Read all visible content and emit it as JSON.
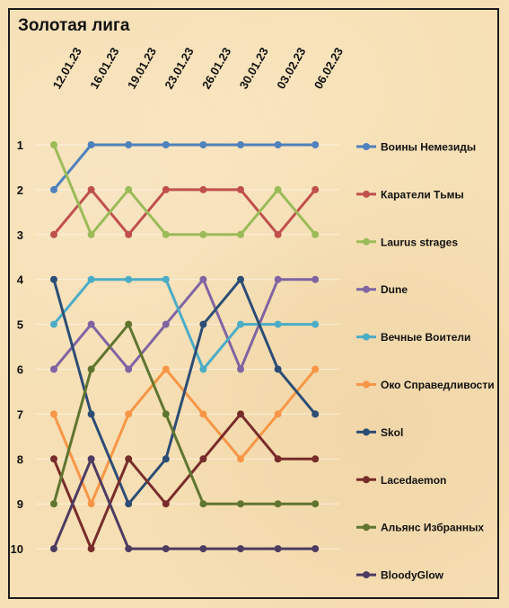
{
  "chart_data": {
    "type": "line",
    "title": "Золотая лига",
    "categories": [
      "12.01.23",
      "16.01.23",
      "19.01.23",
      "23.01.23",
      "26.01.23",
      "30.01.23",
      "03.02.23",
      "06.02.23"
    ],
    "y_ticks": [
      "1",
      "2",
      "3",
      "4",
      "5",
      "6",
      "7",
      "8",
      "9",
      "10"
    ],
    "ylim": [
      1,
      10
    ],
    "y_reversed": true,
    "grid": true,
    "legend_position": "right",
    "series": [
      {
        "name": "Воины Немезиды",
        "color": "#4f81bd",
        "values": [
          2,
          1,
          1,
          1,
          1,
          1,
          1,
          1
        ]
      },
      {
        "name": "Каратели Тьмы",
        "color": "#c0504d",
        "values": [
          3,
          2,
          3,
          2,
          2,
          2,
          3,
          2
        ]
      },
      {
        "name": "Laurus strages",
        "color": "#9bbb59",
        "values": [
          1,
          3,
          2,
          3,
          3,
          3,
          2,
          3
        ]
      },
      {
        "name": "Dune",
        "color": "#8064a2",
        "values": [
          6,
          5,
          6,
          5,
          4,
          6,
          4,
          4
        ]
      },
      {
        "name": "Вечные Воители",
        "color": "#4bacc6",
        "values": [
          5,
          4,
          4,
          4,
          6,
          5,
          5,
          5
        ]
      },
      {
        "name": "Око Справедливости",
        "color": "#f79646",
        "values": [
          7,
          9,
          7,
          6,
          7,
          8,
          7,
          6
        ]
      },
      {
        "name": "Skol",
        "color": "#2c4d75",
        "values": [
          4,
          7,
          9,
          8,
          5,
          4,
          6,
          7
        ]
      },
      {
        "name": "Lacedaemon",
        "color": "#772c2a",
        "values": [
          8,
          10,
          8,
          9,
          8,
          7,
          8,
          8
        ]
      },
      {
        "name": "Альянс Избранных",
        "color": "#5f7530",
        "values": [
          9,
          6,
          5,
          7,
          9,
          9,
          9,
          9
        ]
      },
      {
        "name": "BloodyGlow",
        "color": "#4d3b62",
        "values": [
          10,
          8,
          10,
          10,
          10,
          10,
          10,
          10
        ]
      }
    ]
  }
}
